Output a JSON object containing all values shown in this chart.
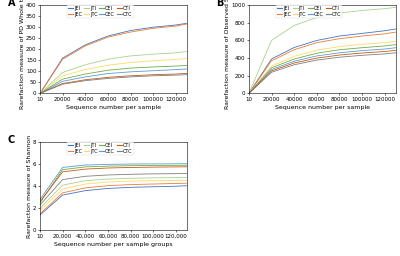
{
  "panels": [
    {
      "label": "A",
      "ylabel": "Rarefaction measure of PD Whole tree",
      "xlabel": "Sequence number per sample",
      "xticklabels": [
        "10",
        "20000",
        "40000",
        "60000",
        "80000",
        "100000",
        "120000"
      ],
      "xticks": [
        10,
        20000,
        40000,
        60000,
        80000,
        100000,
        120000
      ],
      "ylim": [
        0,
        400
      ],
      "yticks": [
        0,
        50,
        100,
        150,
        200,
        250,
        300,
        350,
        400
      ],
      "series": [
        {
          "label": "JEI",
          "color": "#4472C4",
          "values": [
            0,
            160,
            220,
            260,
            285,
            300,
            310,
            318
          ]
        },
        {
          "label": "JEC",
          "color": "#ED7D31",
          "values": [
            0,
            155,
            215,
            255,
            278,
            295,
            305,
            315
          ]
        },
        {
          "label": "JTI",
          "color": "#A9D18E",
          "values": [
            0,
            95,
            130,
            155,
            170,
            178,
            184,
            190
          ]
        },
        {
          "label": "JTC",
          "color": "#FFD966",
          "values": [
            0,
            80,
            108,
            128,
            140,
            148,
            154,
            158
          ]
        },
        {
          "label": "CEI",
          "color": "#70AD47",
          "values": [
            0,
            65,
            88,
            105,
            115,
            120,
            124,
            127
          ]
        },
        {
          "label": "CEC",
          "color": "#5B9BD5",
          "values": [
            0,
            55,
            75,
            90,
            98,
            103,
            108,
            111
          ]
        },
        {
          "label": "CTI",
          "color": "#C55A11",
          "values": [
            0,
            45,
            62,
            73,
            80,
            85,
            88,
            91
          ]
        },
        {
          "label": "CTC",
          "color": "#7F7F7F",
          "values": [
            0,
            42,
            58,
            68,
            75,
            80,
            83,
            85
          ]
        }
      ]
    },
    {
      "label": "B",
      "ylabel": "Rarefaction measure of Observed Spp",
      "xlabel": "Sequence number per sample",
      "xticklabels": [
        "10",
        "20000",
        "40000",
        "60000",
        "80000",
        "100000",
        "120000"
      ],
      "xticks": [
        10,
        20000,
        40000,
        60000,
        80000,
        100000,
        120000
      ],
      "ylim": [
        0,
        1000
      ],
      "yticks": [
        0,
        200,
        400,
        600,
        800,
        1000
      ],
      "series": [
        {
          "label": "JEI",
          "color": "#4472C4",
          "values": [
            0,
            390,
            520,
            600,
            650,
            680,
            710,
            730
          ]
        },
        {
          "label": "JEC",
          "color": "#ED7D31",
          "values": [
            0,
            370,
            495,
            575,
            620,
            650,
            675,
            695
          ]
        },
        {
          "label": "JTI",
          "color": "#A9D18E",
          "values": [
            0,
            600,
            770,
            860,
            910,
            940,
            960,
            975
          ]
        },
        {
          "label": "JTC",
          "color": "#FFD966",
          "values": [
            0,
            310,
            420,
            490,
            530,
            558,
            575,
            590
          ]
        },
        {
          "label": "CEI",
          "color": "#70AD47",
          "values": [
            0,
            290,
            390,
            455,
            495,
            518,
            538,
            553
          ]
        },
        {
          "label": "CEC",
          "color": "#5B9BD5",
          "values": [
            0,
            270,
            365,
            425,
            460,
            485,
            503,
            518
          ]
        },
        {
          "label": "CTI",
          "color": "#C55A11",
          "values": [
            0,
            255,
            345,
            400,
            435,
            458,
            475,
            488
          ]
        },
        {
          "label": "CTC",
          "color": "#7F7F7F",
          "values": [
            0,
            240,
            325,
            378,
            410,
            432,
            448,
            461
          ]
        }
      ]
    },
    {
      "label": "C",
      "ylabel": "Rarefaction measure of Shannon",
      "xlabel": "Sequence number per sample groups",
      "xticklabels": [
        "10",
        "20,000",
        "40,000",
        "60,000",
        "80,000",
        "100,000",
        "120,000"
      ],
      "xticks": [
        10,
        20000,
        40000,
        60000,
        80000,
        100000,
        120000
      ],
      "ylim": [
        0,
        8
      ],
      "yticks": [
        0,
        2,
        4,
        6,
        8
      ],
      "series": [
        {
          "label": "JEI",
          "color": "#4472C4",
          "values": [
            1.4,
            3.2,
            3.6,
            3.8,
            3.9,
            3.95,
            4.0,
            4.05
          ]
        },
        {
          "label": "JEC",
          "color": "#ED7D31",
          "values": [
            1.5,
            3.4,
            3.85,
            4.05,
            4.15,
            4.2,
            4.25,
            4.28
          ]
        },
        {
          "label": "JTI",
          "color": "#A9D18E",
          "values": [
            2.0,
            4.1,
            4.5,
            4.65,
            4.72,
            4.76,
            4.78,
            4.8
          ]
        },
        {
          "label": "JTC",
          "color": "#FFD966",
          "values": [
            1.8,
            3.75,
            4.2,
            4.38,
            4.46,
            4.5,
            4.52,
            4.54
          ]
        },
        {
          "label": "CEI",
          "color": "#70AD47",
          "values": [
            2.5,
            5.5,
            5.75,
            5.82,
            5.86,
            5.88,
            5.89,
            5.9
          ]
        },
        {
          "label": "CEC",
          "color": "#5B9BD5",
          "values": [
            2.8,
            5.7,
            5.92,
            5.98,
            6.01,
            6.02,
            6.03,
            6.04
          ]
        },
        {
          "label": "CTI",
          "color": "#C55A11",
          "values": [
            2.6,
            5.3,
            5.55,
            5.65,
            5.7,
            5.73,
            5.75,
            5.76
          ]
        },
        {
          "label": "CTC",
          "color": "#7F7F7F",
          "values": [
            2.3,
            4.6,
            4.9,
            5.02,
            5.08,
            5.12,
            5.14,
            5.16
          ]
        }
      ]
    }
  ],
  "x_raw": [
    10,
    20000,
    40000,
    60000,
    80000,
    100000,
    120000,
    130000
  ],
  "background_color": "#FFFFFF",
  "fontsize_axis_label": 4.5,
  "fontsize_tick": 4.0,
  "fontsize_legend": 3.5,
  "fontsize_panel_label": 7
}
